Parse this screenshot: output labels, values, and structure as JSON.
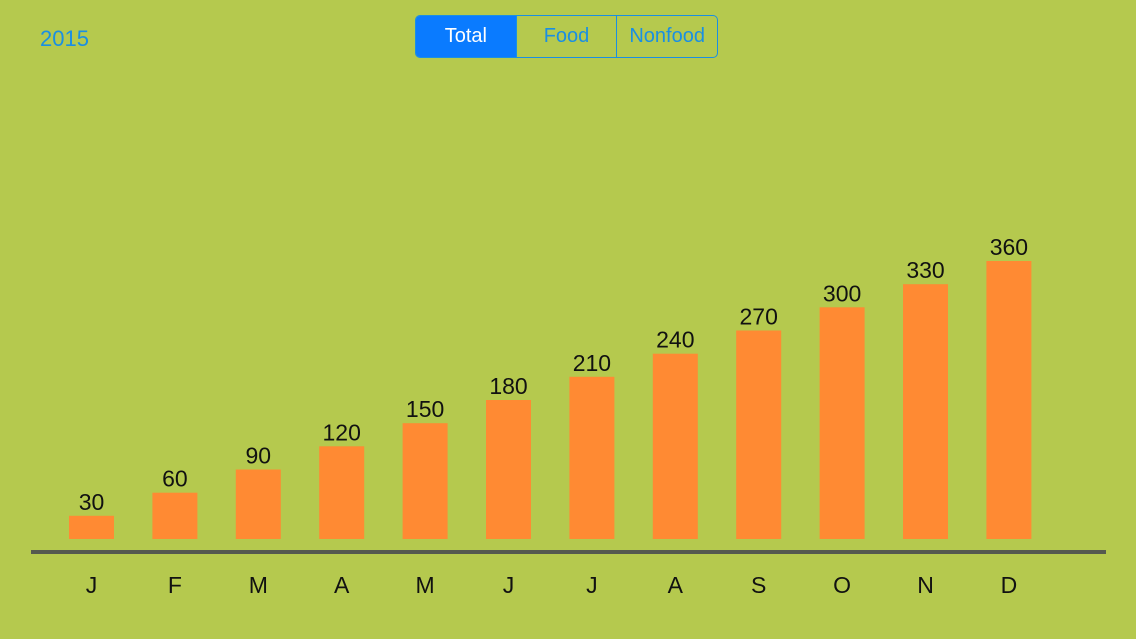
{
  "header": {
    "year": "2015"
  },
  "segments": [
    {
      "label": "Total",
      "active": true
    },
    {
      "label": "Food",
      "active": false
    },
    {
      "label": "Nonfood",
      "active": false
    }
  ],
  "colors": {
    "background": "#b5c94e",
    "accent": "#1a8fe3",
    "active_segment": "#0a7bff",
    "bar": "#ff8a33",
    "baseline": "#555a4f"
  },
  "chart_data": {
    "type": "bar",
    "categories": [
      "J",
      "F",
      "M",
      "A",
      "M",
      "J",
      "J",
      "A",
      "S",
      "O",
      "N",
      "D"
    ],
    "values": [
      30,
      60,
      90,
      120,
      150,
      180,
      210,
      240,
      270,
      300,
      330,
      360
    ],
    "title": "",
    "xlabel": "",
    "ylabel": "",
    "ylim": [
      0,
      360
    ],
    "grid": false,
    "legend": "none"
  }
}
